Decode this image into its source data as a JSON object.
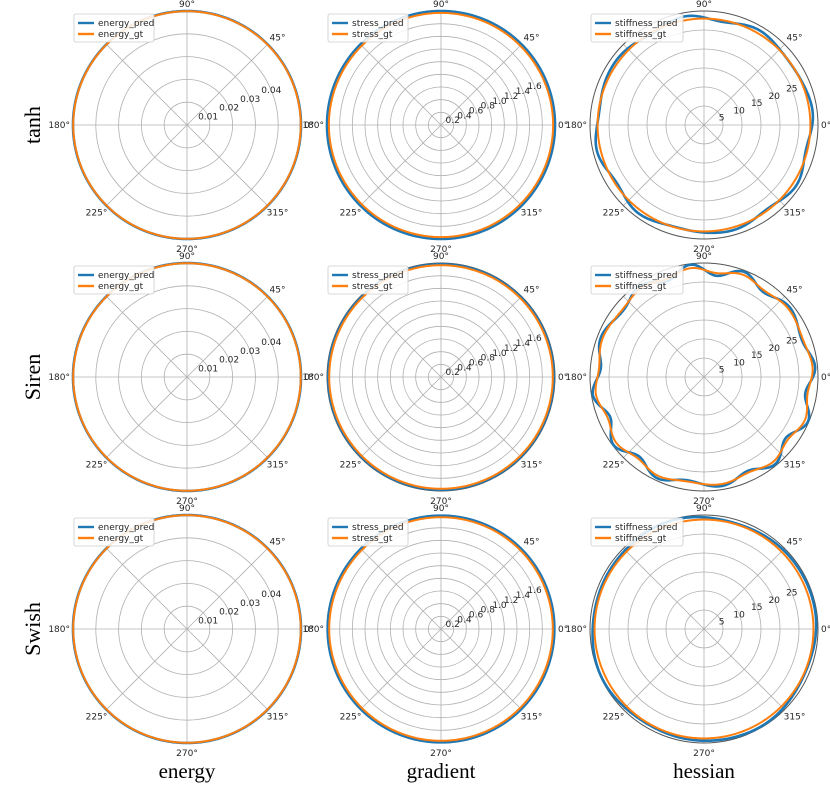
{
  "figure": {
    "row_labels": [
      "tanh",
      "Siren",
      "Swish"
    ],
    "column_labels": [
      "energy",
      "gradient",
      "hessian"
    ],
    "colors": {
      "pred": "#1f77b4",
      "gt": "#ff7f0e",
      "grid": "#b0b0b0",
      "outline": "#555555"
    }
  },
  "chart_data": [
    {
      "type": "polar",
      "row": 0,
      "col": 0,
      "legend": [
        "energy_pred",
        "energy_gt"
      ],
      "legend_loc": "upper-left",
      "angle_ticks": [
        "0°",
        "45°",
        "90°",
        "180°",
        "225°",
        "270°",
        "315°"
      ],
      "r_ticks": [
        0.01,
        0.02,
        0.03,
        0.04
      ],
      "r_tick_labels": [
        "0.01",
        "0.02",
        "0.03",
        "0.04"
      ],
      "rlim": [
        0,
        0.05
      ],
      "r_label_angle_deg": 22.5,
      "series": [
        {
          "name": "energy_pred",
          "r": 0.05
        },
        {
          "name": "energy_gt",
          "r": 0.0499
        }
      ]
    },
    {
      "type": "polar",
      "row": 0,
      "col": 1,
      "legend": [
        "stress_pred",
        "stress_gt"
      ],
      "legend_loc": "upper-left",
      "angle_ticks": [
        "0°",
        "45°",
        "90°",
        "180°",
        "225°",
        "270°",
        "315°"
      ],
      "r_ticks": [
        0.2,
        0.4,
        0.6,
        0.8,
        1.0,
        1.2,
        1.4,
        1.6
      ],
      "r_tick_labels": [
        "0.2",
        "0.4",
        "0.6",
        "0.8",
        "1.0",
        "1.2",
        "1.4",
        "1.6"
      ],
      "rlim": [
        0,
        1.8
      ],
      "r_label_angle_deg": 22.5,
      "series": [
        {
          "name": "stress_pred",
          "r": 1.8
        },
        {
          "name": "stress_gt",
          "r": 1.77
        }
      ]
    },
    {
      "type": "polar",
      "row": 0,
      "col": 2,
      "legend": [
        "stiffness_pred",
        "stiffness_gt"
      ],
      "legend_loc": "upper-left",
      "angle_ticks": [
        "0°",
        "45°",
        "90°",
        "180°",
        "225°",
        "270°",
        "315°"
      ],
      "r_ticks": [
        5,
        10,
        15,
        20,
        25
      ],
      "r_tick_labels": [
        "5",
        "10",
        "15",
        "20",
        "25"
      ],
      "rlim": [
        0,
        30
      ],
      "r_label_angle_deg": 22.5,
      "series": [
        {
          "name": "stiffness_pred",
          "r": 28.3,
          "amp": 0.55,
          "k": 8
        },
        {
          "name": "stiffness_gt",
          "r": 28.0
        }
      ]
    },
    {
      "type": "polar",
      "row": 1,
      "col": 0,
      "legend": [
        "energy_pred",
        "energy_gt"
      ],
      "legend_loc": "upper-left",
      "angle_ticks": [
        "0°",
        "45°",
        "90°",
        "180°",
        "225°",
        "270°",
        "315°"
      ],
      "r_ticks": [
        0.01,
        0.02,
        0.03,
        0.04
      ],
      "r_tick_labels": [
        "0.01",
        "0.02",
        "0.03",
        "0.04"
      ],
      "rlim": [
        0,
        0.05
      ],
      "r_label_angle_deg": 22.5,
      "series": [
        {
          "name": "energy_pred",
          "r": 0.05
        },
        {
          "name": "energy_gt",
          "r": 0.0499
        }
      ]
    },
    {
      "type": "polar",
      "row": 1,
      "col": 1,
      "legend": [
        "stress_pred",
        "stress_gt"
      ],
      "legend_loc": "upper-left",
      "angle_ticks": [
        "0°",
        "45°",
        "90°",
        "180°",
        "225°",
        "270°",
        "315°"
      ],
      "r_ticks": [
        0.2,
        0.4,
        0.6,
        0.8,
        1.0,
        1.2,
        1.4,
        1.6
      ],
      "r_tick_labels": [
        "0.2",
        "0.4",
        "0.6",
        "0.8",
        "1.0",
        "1.2",
        "1.4",
        "1.6"
      ],
      "rlim": [
        0,
        1.8
      ],
      "r_label_angle_deg": 22.5,
      "series": [
        {
          "name": "stress_pred",
          "r": 1.78
        },
        {
          "name": "stress_gt",
          "r": 1.765
        }
      ]
    },
    {
      "type": "polar",
      "row": 1,
      "col": 2,
      "legend": [
        "stiffness_pred",
        "stiffness_gt"
      ],
      "legend_loc": "upper-left",
      "angle_ticks": [
        "0°",
        "45°",
        "90°",
        "180°",
        "225°",
        "270°",
        "315°"
      ],
      "r_ticks": [
        5,
        10,
        15,
        20,
        25
      ],
      "r_tick_labels": [
        "5",
        "10",
        "15",
        "20",
        "25"
      ],
      "rlim": [
        0,
        30
      ],
      "r_label_angle_deg": 22.5,
      "series": [
        {
          "name": "stiffness_pred",
          "r": 28.3,
          "amp": 1.1,
          "k": 12
        },
        {
          "name": "stiffness_gt",
          "r": 28.2,
          "amp": 0.5,
          "k": 12
        }
      ]
    },
    {
      "type": "polar",
      "row": 2,
      "col": 0,
      "legend": [
        "energy_pred",
        "energy_gt"
      ],
      "legend_loc": "upper-left",
      "angle_ticks": [
        "0°",
        "45°",
        "90°",
        "180°",
        "225°",
        "270°",
        "315°"
      ],
      "r_ticks": [
        0.01,
        0.02,
        0.03,
        0.04
      ],
      "r_tick_labels": [
        "0.01",
        "0.02",
        "0.03",
        "0.04"
      ],
      "rlim": [
        0,
        0.05
      ],
      "r_label_angle_deg": 22.5,
      "series": [
        {
          "name": "energy_pred",
          "r": 0.05
        },
        {
          "name": "energy_gt",
          "r": 0.0499
        }
      ]
    },
    {
      "type": "polar",
      "row": 2,
      "col": 1,
      "legend": [
        "stress_pred",
        "stress_gt"
      ],
      "legend_loc": "upper-left",
      "angle_ticks": [
        "0°",
        "45°",
        "90°",
        "180°",
        "225°",
        "270°",
        "315°"
      ],
      "r_ticks": [
        0.2,
        0.4,
        0.6,
        0.8,
        1.0,
        1.2,
        1.4,
        1.6
      ],
      "r_tick_labels": [
        "0.2",
        "0.4",
        "0.6",
        "0.8",
        "1.0",
        "1.2",
        "1.4",
        "1.6"
      ],
      "rlim": [
        0,
        1.8
      ],
      "r_label_angle_deg": 22.5,
      "series": [
        {
          "name": "stress_pred",
          "r": 1.79
        },
        {
          "name": "stress_gt",
          "r": 1.765
        }
      ]
    },
    {
      "type": "polar",
      "row": 2,
      "col": 2,
      "legend": [
        "stiffness_pred",
        "stiffness_gt"
      ],
      "legend_loc": "upper-left",
      "angle_ticks": [
        "0°",
        "45°",
        "90°",
        "180°",
        "225°",
        "270°",
        "315°"
      ],
      "r_ticks": [
        5,
        10,
        15,
        20,
        25
      ],
      "r_tick_labels": [
        "5",
        "10",
        "15",
        "20",
        "25"
      ],
      "rlim": [
        0,
        30
      ],
      "r_label_angle_deg": 22.5,
      "series": [
        {
          "name": "stiffness_pred",
          "r": 29.4,
          "amp": 0.3,
          "k": 4
        },
        {
          "name": "stiffness_gt",
          "r": 28.8
        }
      ]
    }
  ]
}
